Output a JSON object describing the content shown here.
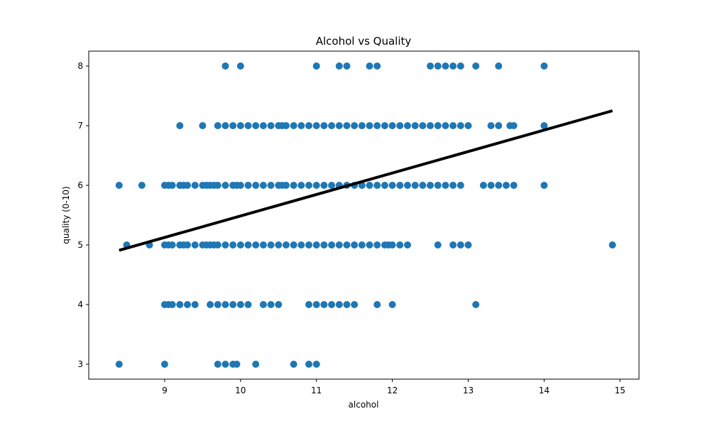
{
  "chart_data": {
    "type": "scatter",
    "title": "Alcohol vs Quality",
    "xlabel": "alcohol",
    "ylabel": "quality (0-10)",
    "xlim": [
      8.0,
      15.25
    ],
    "ylim": [
      2.75,
      8.25
    ],
    "xticks": [
      9,
      10,
      11,
      12,
      13,
      14,
      15
    ],
    "yticks": [
      3,
      4,
      5,
      6,
      7,
      8
    ],
    "grid": false,
    "colors": {
      "points": "#1f77b4",
      "fit_line": "#000000",
      "axes": "#000000"
    },
    "series": [
      {
        "type": "scatter",
        "points": [
          [
            8.4,
            6
          ],
          [
            8.4,
            3
          ],
          [
            8.5,
            5
          ],
          [
            8.7,
            6
          ],
          [
            8.8,
            5
          ],
          [
            9.0,
            6
          ],
          [
            9.0,
            5
          ],
          [
            9.0,
            4
          ],
          [
            9.0,
            3
          ],
          [
            9.05,
            6
          ],
          [
            9.05,
            5
          ],
          [
            9.05,
            4
          ],
          [
            9.1,
            6
          ],
          [
            9.1,
            5
          ],
          [
            9.1,
            4
          ],
          [
            9.2,
            7
          ],
          [
            9.2,
            6
          ],
          [
            9.2,
            5
          ],
          [
            9.2,
            4
          ],
          [
            9.25,
            6
          ],
          [
            9.25,
            5
          ],
          [
            9.3,
            6
          ],
          [
            9.3,
            5
          ],
          [
            9.3,
            4
          ],
          [
            9.4,
            6
          ],
          [
            9.4,
            5
          ],
          [
            9.4,
            4
          ],
          [
            9.5,
            7
          ],
          [
            9.5,
            6
          ],
          [
            9.5,
            5
          ],
          [
            9.55,
            6
          ],
          [
            9.55,
            5
          ],
          [
            9.6,
            6
          ],
          [
            9.6,
            5
          ],
          [
            9.6,
            4
          ],
          [
            9.65,
            6
          ],
          [
            9.65,
            5
          ],
          [
            9.7,
            7
          ],
          [
            9.7,
            6
          ],
          [
            9.7,
            5
          ],
          [
            9.7,
            4
          ],
          [
            9.7,
            3
          ],
          [
            9.8,
            8
          ],
          [
            9.8,
            7
          ],
          [
            9.8,
            6
          ],
          [
            9.8,
            5
          ],
          [
            9.8,
            4
          ],
          [
            9.8,
            3
          ],
          [
            9.9,
            7
          ],
          [
            9.9,
            6
          ],
          [
            9.9,
            5
          ],
          [
            9.9,
            4
          ],
          [
            9.9,
            3
          ],
          [
            9.95,
            6
          ],
          [
            9.95,
            3
          ],
          [
            10.0,
            8
          ],
          [
            10.0,
            7
          ],
          [
            10.0,
            6
          ],
          [
            10.0,
            5
          ],
          [
            10.0,
            4
          ],
          [
            10.1,
            7
          ],
          [
            10.1,
            6
          ],
          [
            10.1,
            5
          ],
          [
            10.1,
            4
          ],
          [
            10.2,
            7
          ],
          [
            10.2,
            6
          ],
          [
            10.2,
            5
          ],
          [
            10.2,
            3
          ],
          [
            10.3,
            7
          ],
          [
            10.3,
            6
          ],
          [
            10.3,
            5
          ],
          [
            10.3,
            4
          ],
          [
            10.4,
            7
          ],
          [
            10.4,
            6
          ],
          [
            10.4,
            5
          ],
          [
            10.4,
            4
          ],
          [
            10.5,
            7
          ],
          [
            10.5,
            6
          ],
          [
            10.5,
            5
          ],
          [
            10.5,
            4
          ],
          [
            10.55,
            7
          ],
          [
            10.55,
            6
          ],
          [
            10.6,
            7
          ],
          [
            10.6,
            6
          ],
          [
            10.6,
            5
          ],
          [
            10.7,
            7
          ],
          [
            10.7,
            6
          ],
          [
            10.7,
            5
          ],
          [
            10.7,
            3
          ],
          [
            10.8,
            7
          ],
          [
            10.8,
            6
          ],
          [
            10.8,
            5
          ],
          [
            10.9,
            7
          ],
          [
            10.9,
            6
          ],
          [
            10.9,
            5
          ],
          [
            10.9,
            4
          ],
          [
            10.9,
            3
          ],
          [
            11.0,
            8
          ],
          [
            11.0,
            7
          ],
          [
            11.0,
            6
          ],
          [
            11.0,
            5
          ],
          [
            11.0,
            4
          ],
          [
            11.0,
            3
          ],
          [
            11.1,
            7
          ],
          [
            11.1,
            6
          ],
          [
            11.1,
            5
          ],
          [
            11.1,
            4
          ],
          [
            11.2,
            7
          ],
          [
            11.2,
            6
          ],
          [
            11.2,
            5
          ],
          [
            11.2,
            4
          ],
          [
            11.3,
            8
          ],
          [
            11.3,
            7
          ],
          [
            11.3,
            6
          ],
          [
            11.3,
            5
          ],
          [
            11.3,
            4
          ],
          [
            11.4,
            8
          ],
          [
            11.4,
            7
          ],
          [
            11.4,
            6
          ],
          [
            11.4,
            5
          ],
          [
            11.4,
            4
          ],
          [
            11.5,
            7
          ],
          [
            11.5,
            6
          ],
          [
            11.5,
            5
          ],
          [
            11.5,
            4
          ],
          [
            11.6,
            7
          ],
          [
            11.6,
            6
          ],
          [
            11.6,
            5
          ],
          [
            11.7,
            8
          ],
          [
            11.7,
            7
          ],
          [
            11.7,
            6
          ],
          [
            11.7,
            5
          ],
          [
            11.8,
            8
          ],
          [
            11.8,
            7
          ],
          [
            11.8,
            6
          ],
          [
            11.8,
            5
          ],
          [
            11.8,
            4
          ],
          [
            11.9,
            7
          ],
          [
            11.9,
            6
          ],
          [
            11.9,
            5
          ],
          [
            11.95,
            5
          ],
          [
            12.0,
            7
          ],
          [
            12.0,
            6
          ],
          [
            12.0,
            5
          ],
          [
            12.0,
            4
          ],
          [
            12.1,
            7
          ],
          [
            12.1,
            6
          ],
          [
            12.1,
            5
          ],
          [
            12.2,
            7
          ],
          [
            12.2,
            6
          ],
          [
            12.2,
            5
          ],
          [
            12.3,
            7
          ],
          [
            12.3,
            6
          ],
          [
            12.4,
            7
          ],
          [
            12.4,
            6
          ],
          [
            12.5,
            8
          ],
          [
            12.5,
            7
          ],
          [
            12.5,
            6
          ],
          [
            12.6,
            8
          ],
          [
            12.6,
            7
          ],
          [
            12.6,
            6
          ],
          [
            12.6,
            5
          ],
          [
            12.7,
            8
          ],
          [
            12.7,
            7
          ],
          [
            12.7,
            6
          ],
          [
            12.8,
            8
          ],
          [
            12.8,
            7
          ],
          [
            12.8,
            6
          ],
          [
            12.8,
            5
          ],
          [
            12.9,
            8
          ],
          [
            12.9,
            7
          ],
          [
            12.9,
            6
          ],
          [
            12.9,
            5
          ],
          [
            13.0,
            7
          ],
          [
            13.0,
            5
          ],
          [
            13.1,
            8
          ],
          [
            13.1,
            4
          ],
          [
            13.2,
            6
          ],
          [
            13.3,
            7
          ],
          [
            13.3,
            6
          ],
          [
            13.4,
            8
          ],
          [
            13.4,
            7
          ],
          [
            13.4,
            6
          ],
          [
            13.5,
            6
          ],
          [
            13.55,
            7
          ],
          [
            13.6,
            7
          ],
          [
            13.6,
            6
          ],
          [
            14.0,
            8
          ],
          [
            14.0,
            7
          ],
          [
            14.0,
            6
          ],
          [
            14.9,
            5
          ]
        ]
      },
      {
        "type": "line",
        "x": [
          8.4,
          14.9
        ],
        "y": [
          4.91,
          7.25
        ]
      }
    ]
  }
}
